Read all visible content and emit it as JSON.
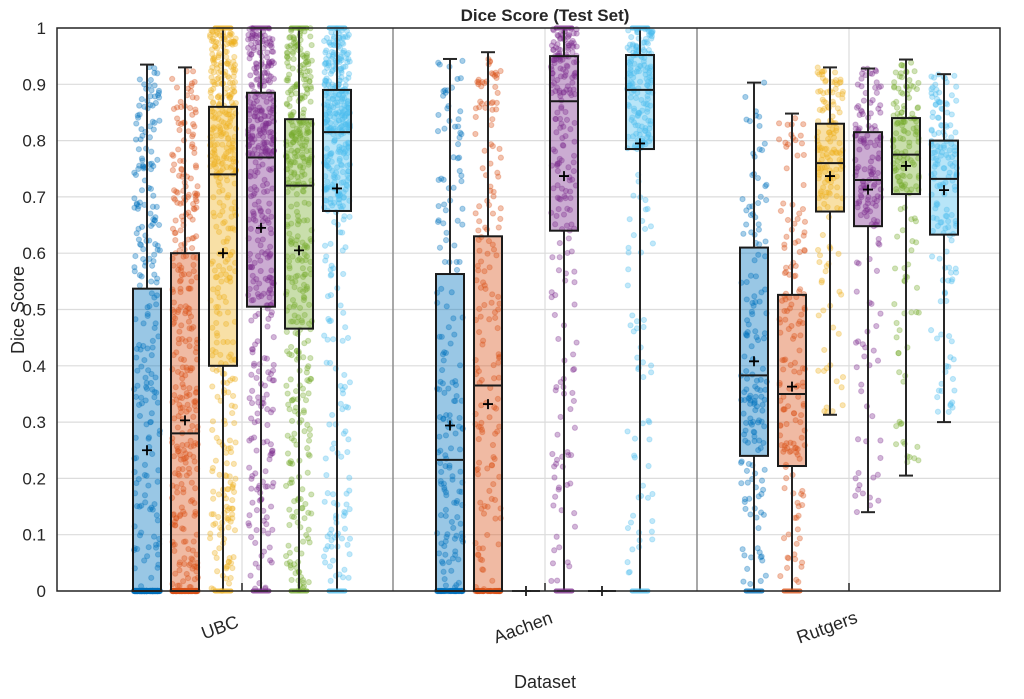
{
  "chart_data": {
    "type": "box",
    "title": "Dice Score (Test Set)",
    "xlabel": "Dataset",
    "ylabel": "Dice Score",
    "ylim": [
      0,
      1
    ],
    "yticks": [
      "0",
      "0.1",
      "0.2",
      "0.3",
      "0.4",
      "0.5",
      "0.6",
      "0.7",
      "0.8",
      "0.9",
      "1"
    ],
    "grid": true,
    "categories": [
      "UBC",
      "Aachen",
      "Rutgers"
    ],
    "series_colors": [
      "#0072BD",
      "#D95319",
      "#EDB120",
      "#7E2F8E",
      "#77AC30",
      "#4DBEEE"
    ],
    "groups": [
      {
        "dataset": "UBC",
        "boxes": [
          {
            "q1": 0,
            "median": 0,
            "q3": 0.537,
            "whisker_low": 0,
            "whisker_high": 0.935,
            "mean": 0.25
          },
          {
            "q1": 0,
            "median": 0.28,
            "q3": 0.6,
            "whisker_low": 0,
            "whisker_high": 0.93,
            "mean": 0.303
          },
          {
            "q1": 0.4,
            "median": 0.74,
            "q3": 0.86,
            "whisker_low": 0,
            "whisker_high": 1,
            "mean": 0.6
          },
          {
            "q1": 0.505,
            "median": 0.77,
            "q3": 0.885,
            "whisker_low": 0,
            "whisker_high": 1,
            "mean": 0.645
          },
          {
            "q1": 0.466,
            "median": 0.72,
            "q3": 0.838,
            "whisker_low": 0,
            "whisker_high": 1,
            "mean": 0.605
          },
          {
            "q1": 0.675,
            "median": 0.815,
            "q3": 0.89,
            "whisker_low": 0,
            "whisker_high": 1,
            "mean": 0.715
          }
        ]
      },
      {
        "dataset": "Aachen",
        "boxes": [
          {
            "q1": 0,
            "median": 0.233,
            "q3": 0.563,
            "whisker_low": 0,
            "whisker_high": 0.945,
            "mean": 0.294
          },
          {
            "q1": 0,
            "median": 0.365,
            "q3": 0.63,
            "whisker_low": 0,
            "whisker_high": 0.957,
            "mean": 0.332
          },
          {
            "q1": 0,
            "median": 0,
            "q3": 0,
            "whisker_low": 0,
            "whisker_high": 0,
            "mean": 0
          },
          {
            "q1": 0.64,
            "median": 0.87,
            "q3": 0.95,
            "whisker_low": 0,
            "whisker_high": 1,
            "mean": 0.737
          },
          {
            "q1": 0,
            "median": 0,
            "q3": 0,
            "whisker_low": 0,
            "whisker_high": 0,
            "mean": 0
          },
          {
            "q1": 0.785,
            "median": 0.89,
            "q3": 0.952,
            "whisker_low": 0,
            "whisker_high": 1,
            "mean": 0.795
          }
        ]
      },
      {
        "dataset": "Rutgers",
        "boxes": [
          {
            "q1": 0.24,
            "median": 0.383,
            "q3": 0.61,
            "whisker_low": 0,
            "whisker_high": 0.903,
            "mean": 0.408
          },
          {
            "q1": 0.222,
            "median": 0.35,
            "q3": 0.526,
            "whisker_low": 0,
            "whisker_high": 0.848,
            "mean": 0.363
          },
          {
            "q1": 0.674,
            "median": 0.76,
            "q3": 0.83,
            "whisker_low": 0.313,
            "whisker_high": 0.93,
            "mean": 0.737
          },
          {
            "q1": 0.648,
            "median": 0.73,
            "q3": 0.815,
            "whisker_low": 0.14,
            "whisker_high": 0.928,
            "mean": 0.713
          },
          {
            "q1": 0.705,
            "median": 0.775,
            "q3": 0.84,
            "whisker_low": 0.205,
            "whisker_high": 0.944,
            "mean": 0.755
          },
          {
            "q1": 0.633,
            "median": 0.732,
            "q3": 0.8,
            "whisker_low": 0.3,
            "whisker_high": 0.918,
            "mean": 0.712
          }
        ]
      }
    ]
  }
}
